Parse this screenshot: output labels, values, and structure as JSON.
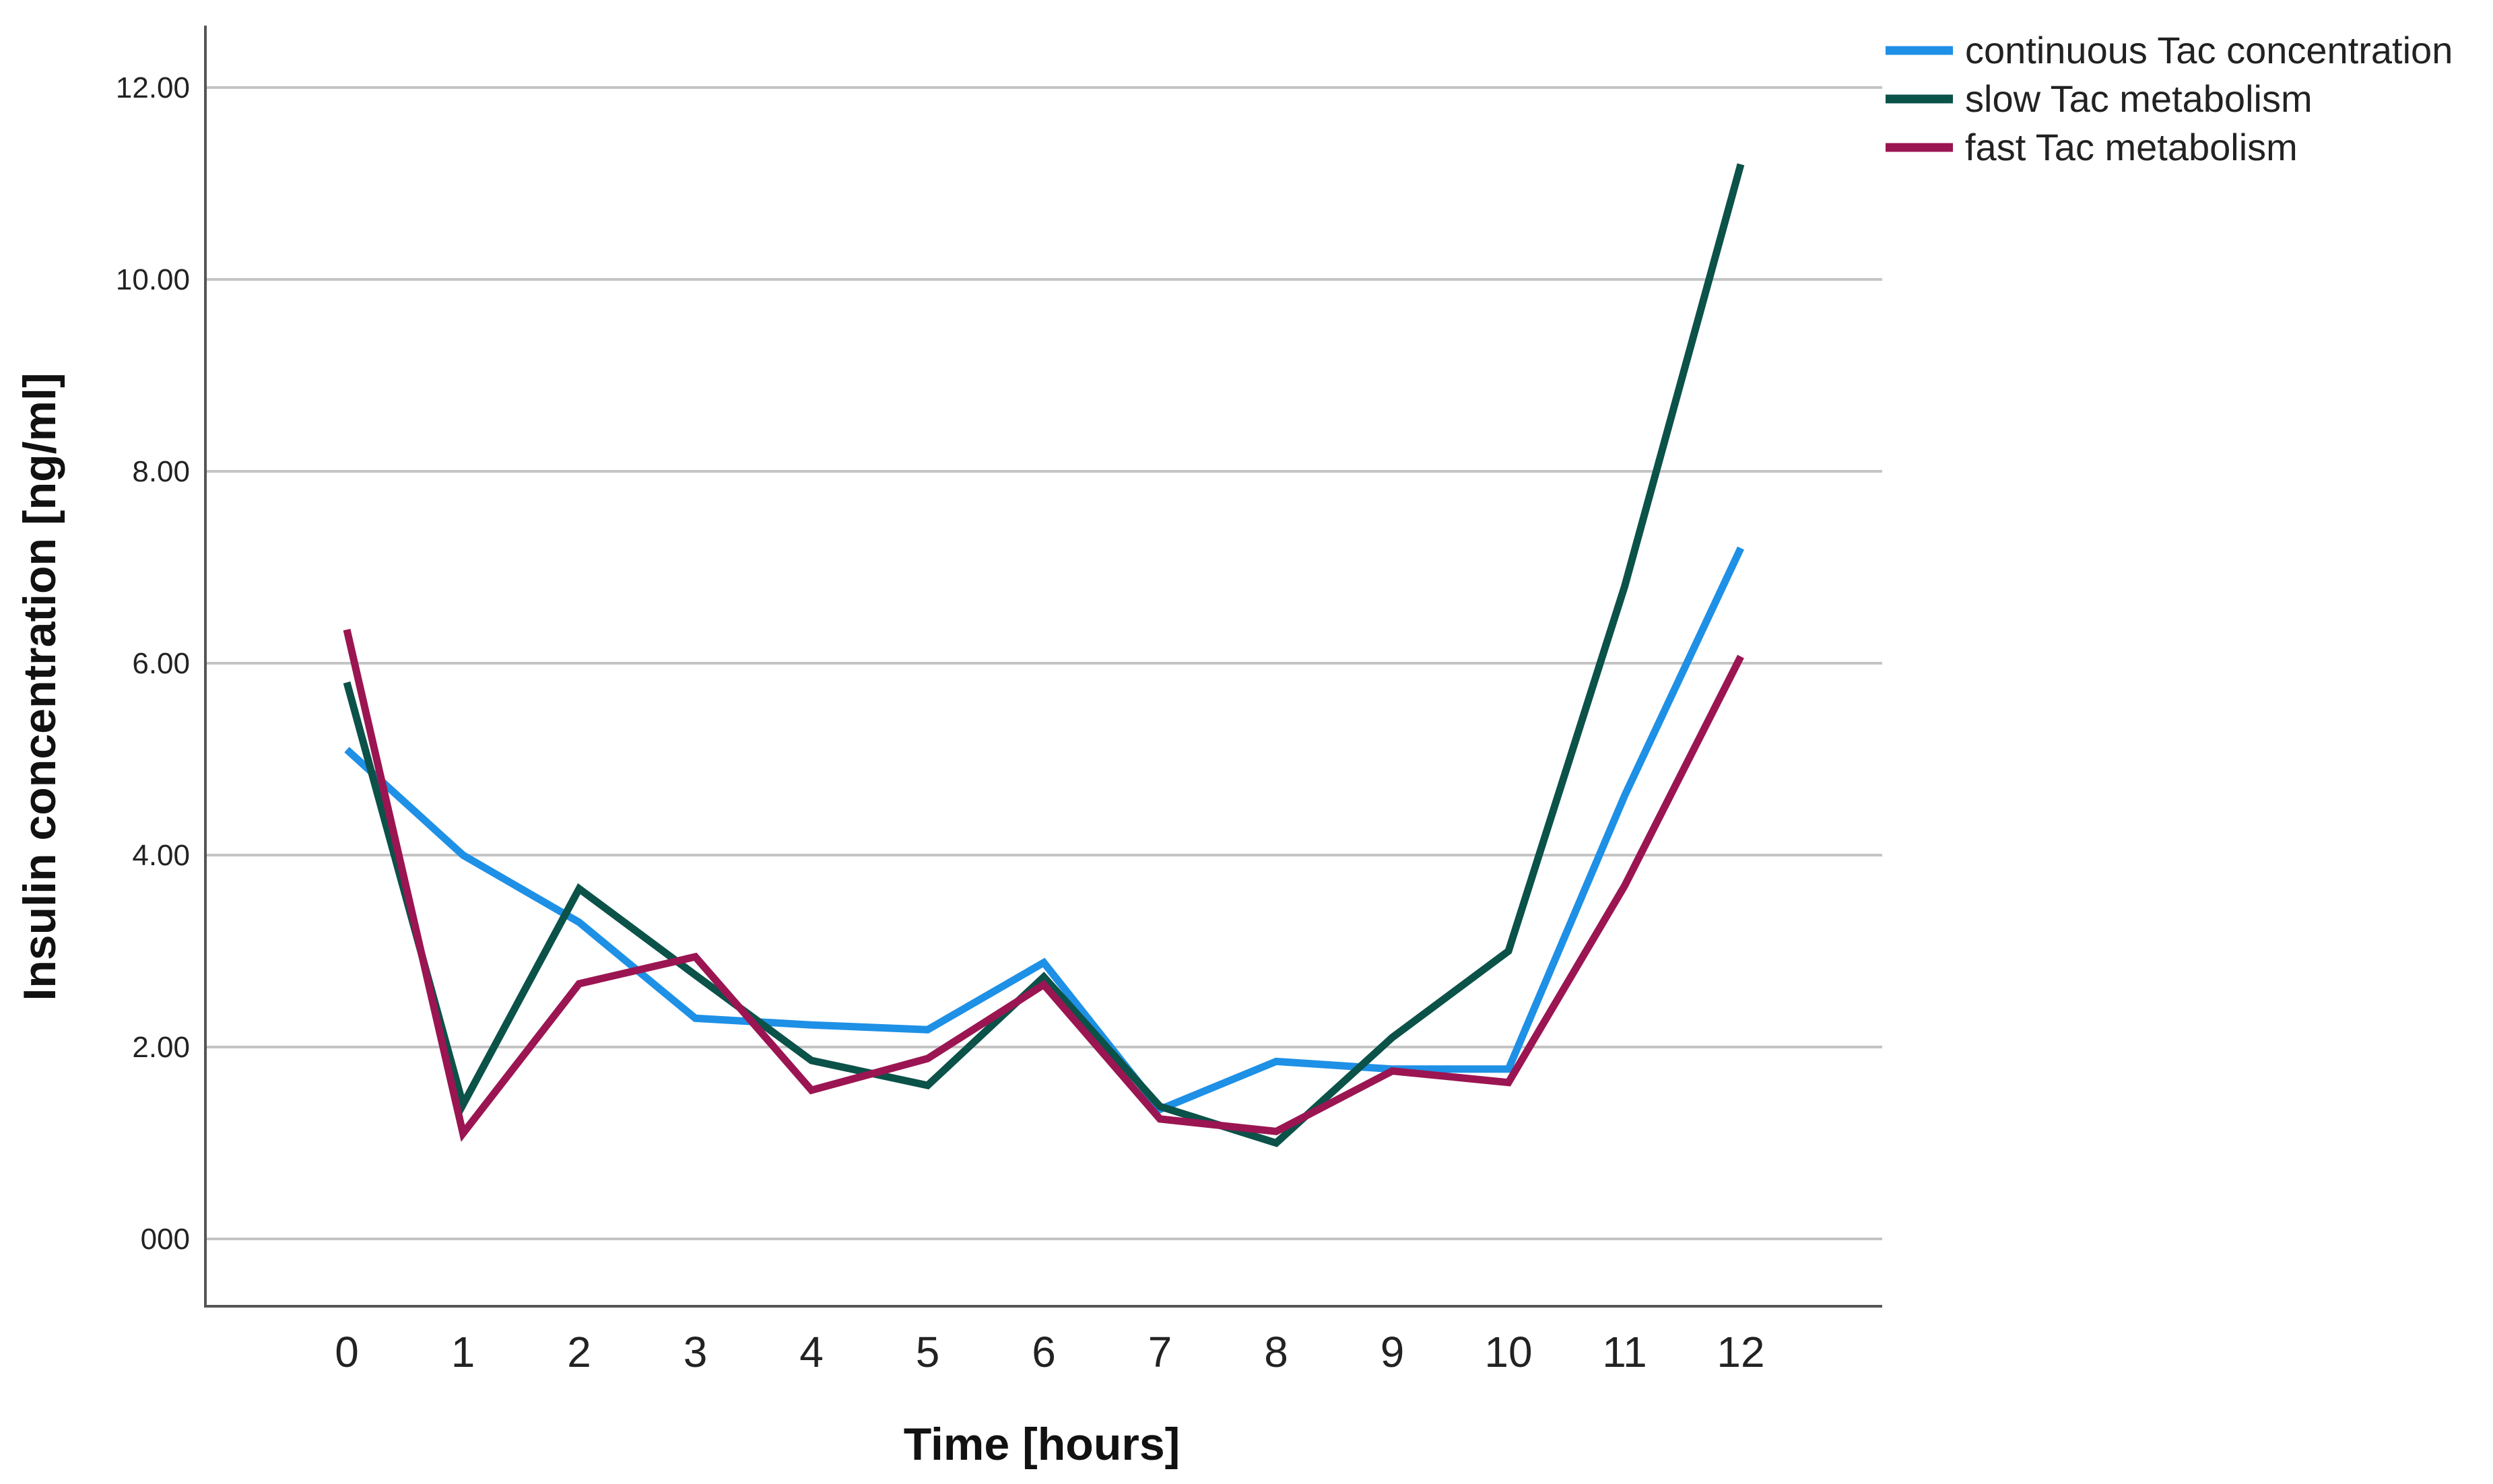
{
  "chart_data": {
    "type": "line",
    "title": "",
    "xlabel": "Time [hours]",
    "ylabel": "Insulin concentration [ng/ml]",
    "x": [
      0,
      1,
      2,
      3,
      4,
      5,
      6,
      7,
      8,
      9,
      10,
      11,
      12
    ],
    "x_tick_labels": [
      "0",
      "1",
      "2",
      "3",
      "4",
      "5",
      "6",
      "7",
      "8",
      "9",
      "10",
      "11",
      "12"
    ],
    "ylim": [
      -0.65,
      12.65
    ],
    "y_ticks": [
      0,
      2,
      4,
      6,
      8,
      10,
      12
    ],
    "y_tick_labels": [
      "000",
      "2.00",
      "4.00",
      "6.00",
      "8.00",
      "10.00",
      "12.00"
    ],
    "grid": "horizontal",
    "legend_position": "top-right",
    "series": [
      {
        "name": "continuous Tac concentration",
        "color": "#1e90e6",
        "values": [
          5.1,
          4.0,
          3.3,
          2.3,
          2.23,
          2.18,
          2.88,
          1.35,
          1.85,
          1.77,
          1.77,
          4.62,
          7.2
        ]
      },
      {
        "name": "slow Tac metabolism",
        "color": "#0b5249",
        "values": [
          5.8,
          1.4,
          3.65,
          2.75,
          1.86,
          1.6,
          2.73,
          1.38,
          1.0,
          2.1,
          3.0,
          6.8,
          11.2
        ]
      },
      {
        "name": "fast Tac metabolism",
        "color": "#9b1552",
        "values": [
          6.35,
          1.1,
          2.66,
          2.94,
          1.55,
          1.88,
          2.65,
          1.25,
          1.12,
          1.75,
          1.63,
          3.68,
          6.07
        ]
      }
    ]
  }
}
